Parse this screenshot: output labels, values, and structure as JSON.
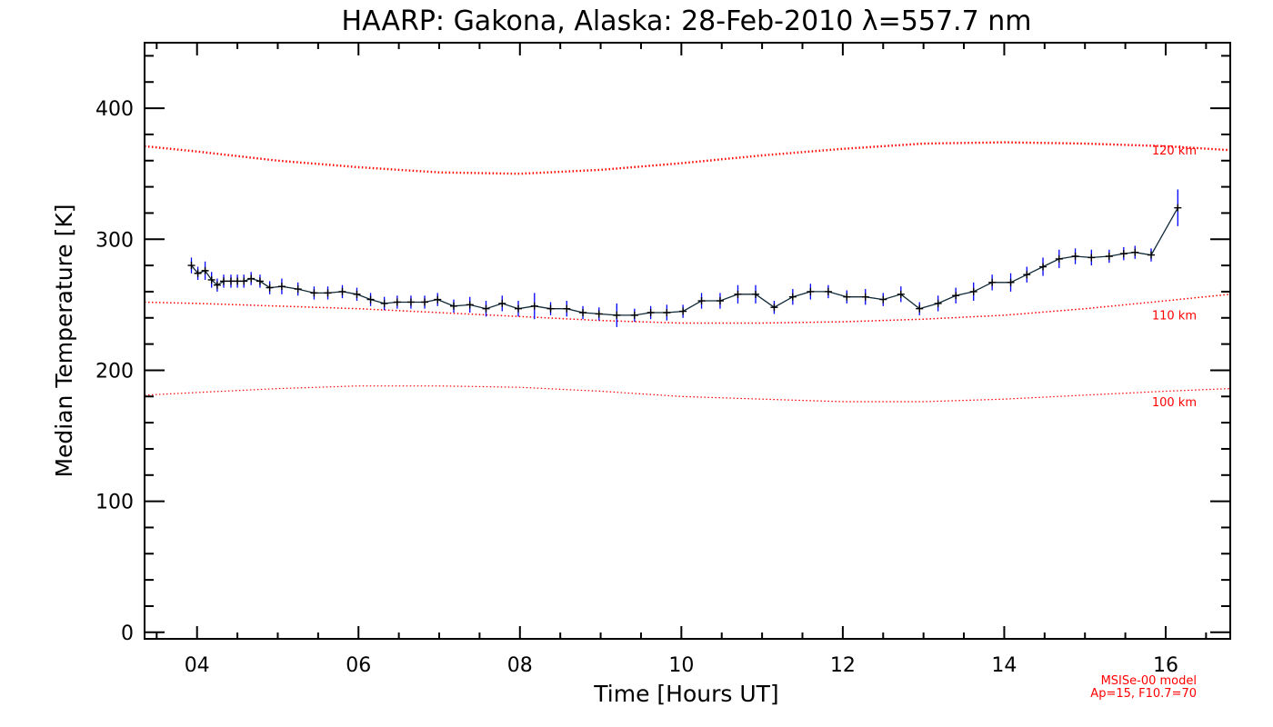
{
  "chart_data": {
    "type": "line",
    "title": "HAARP: Gakona,  Alaska: 28-Feb-2010 λ=557.7 nm",
    "xlabel": "Time [Hours UT]",
    "ylabel": "Median Temperature [K]",
    "xlim": [
      3.35,
      16.8
    ],
    "ylim": [
      -5,
      450
    ],
    "xticks": [
      4,
      6,
      8,
      10,
      12,
      14,
      16
    ],
    "xtick_labels": [
      "04",
      "06",
      "08",
      "10",
      "12",
      "14",
      "16"
    ],
    "yticks": [
      0,
      100,
      200,
      300,
      400
    ],
    "ytick_labels": [
      "0",
      "100",
      "200",
      "300",
      "400"
    ],
    "colors": {
      "data_line": "#102a3a",
      "error_bar": "#0000ff",
      "model": "#ff0000",
      "axes": "#000000"
    },
    "series": [
      {
        "x": [
          3.93,
          4.01,
          4.1,
          4.18,
          4.25,
          4.33,
          4.42,
          4.5,
          4.58,
          4.67,
          4.78,
          4.9,
          5.05,
          5.25,
          5.45,
          5.62,
          5.8,
          5.98,
          6.15,
          6.32,
          6.48,
          6.65,
          6.82,
          6.98,
          7.18,
          7.38,
          7.58,
          7.78,
          7.98,
          8.18,
          8.38,
          8.58,
          8.78,
          8.98,
          9.2,
          9.42,
          9.62,
          9.82,
          10.02,
          10.25,
          10.48,
          10.7,
          10.92,
          11.15,
          11.38,
          11.6,
          11.82,
          12.05,
          12.28,
          12.5,
          12.72,
          12.95,
          13.18,
          13.4,
          13.62,
          13.85,
          14.08,
          14.28,
          14.48,
          14.68,
          14.88,
          15.08,
          15.3,
          15.48,
          15.62,
          15.82,
          16.15
        ],
        "y": [
          280,
          274,
          276,
          269,
          265,
          268,
          268,
          268,
          268,
          270,
          268,
          263,
          264,
          262,
          259,
          259,
          260,
          258,
          254,
          251,
          252,
          252,
          252,
          254,
          249,
          250,
          247,
          251,
          247,
          249,
          247,
          247,
          244,
          243,
          242,
          242,
          244,
          244,
          245,
          253,
          253,
          258,
          258,
          248,
          256,
          260,
          260,
          256,
          256,
          254,
          258,
          247,
          251,
          257,
          260,
          267,
          267,
          273,
          279,
          285,
          287,
          286,
          287,
          289,
          290,
          288,
          324
        ],
        "err": [
          6,
          5,
          7,
          6,
          5,
          5,
          5,
          5,
          5,
          5,
          5,
          5,
          6,
          5,
          5,
          5,
          5,
          5,
          5,
          5,
          5,
          5,
          5,
          5,
          5,
          6,
          6,
          6,
          6,
          10,
          5,
          6,
          5,
          5,
          9,
          5,
          5,
          6,
          5,
          6,
          6,
          7,
          7,
          5,
          6,
          6,
          5,
          5,
          6,
          5,
          6,
          5,
          6,
          6,
          7,
          6,
          7,
          6,
          7,
          7,
          6,
          6,
          5,
          5,
          5,
          5,
          14
        ]
      }
    ],
    "model_curves": [
      {
        "label": "120 km",
        "x": [
          3.35,
          4,
          5,
          6,
          7,
          8,
          9,
          10,
          11,
          12,
          13,
          14,
          15,
          16,
          16.8
        ],
        "y": [
          371,
          367,
          360,
          355,
          351,
          350,
          353,
          358,
          364,
          369,
          373,
          374,
          373,
          371,
          368
        ]
      },
      {
        "label": "110 km",
        "x": [
          3.35,
          4,
          5,
          6,
          7,
          8,
          9,
          10,
          11,
          12,
          13,
          14,
          15,
          16,
          16.8
        ],
        "y": [
          252,
          251,
          249,
          247,
          244,
          241,
          238,
          236,
          236,
          237,
          239,
          242,
          247,
          253,
          258
        ]
      },
      {
        "label": "100 km",
        "x": [
          3.35,
          4,
          5,
          6,
          7,
          8,
          9,
          10,
          11,
          12,
          13,
          14,
          15,
          16,
          16.8
        ],
        "y": [
          181,
          183,
          186,
          188,
          188,
          187,
          184,
          180,
          178,
          176,
          176,
          178,
          181,
          184,
          186
        ]
      }
    ],
    "model_note": [
      "MSISe-00 model",
      "Ap=15, F10.7=70"
    ]
  }
}
